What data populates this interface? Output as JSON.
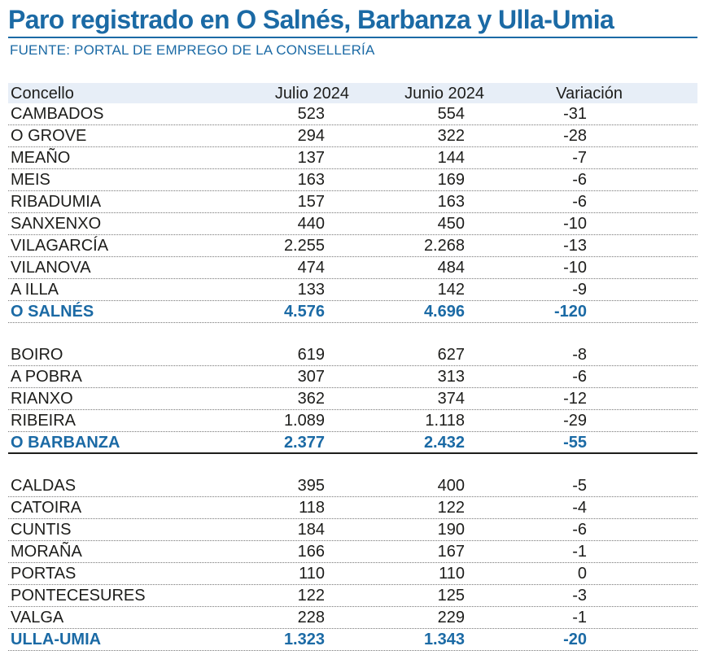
{
  "title": "Paro registrado en O Salnés, Barbanza y Ulla-Umia",
  "source": "FUENTE: PORTAL DE EMPREGO DE LA CONSELLERÍA",
  "header": {
    "concello": "Concello",
    "julio": "Julio 2024",
    "junio": "Junio 2024",
    "variacion": "Variación"
  },
  "groups": [
    {
      "rows": [
        {
          "name": "CAMBADOS",
          "julio": "523",
          "junio": "554",
          "variacion": "-31"
        },
        {
          "name": "O GROVE",
          "julio": "294",
          "junio": "322",
          "variacion": "-28"
        },
        {
          "name": "MEAÑO",
          "julio": "137",
          "junio": "144",
          "variacion": "-7"
        },
        {
          "name": "MEIS",
          "julio": "163",
          "junio": "169",
          "variacion": "-6"
        },
        {
          "name": "RIBADUMIA",
          "julio": "157",
          "junio": "163",
          "variacion": "-6"
        },
        {
          "name": "SANXENXO",
          "julio": "440",
          "junio": "450",
          "variacion": "-10"
        },
        {
          "name": "VILAGARCÍA",
          "julio": "2.255",
          "junio": "2.268",
          "variacion": "-13"
        },
        {
          "name": "VILANOVA",
          "julio": "474",
          "junio": "484",
          "variacion": "-10"
        },
        {
          "name": "A ILLA",
          "julio": "133",
          "junio": "142",
          "variacion": "-9"
        }
      ],
      "total": {
        "name": "O SALNÉS",
        "julio": "4.576",
        "junio": "4.696",
        "variacion": "-120"
      }
    },
    {
      "rows": [
        {
          "name": "BOIRO",
          "julio": "619",
          "junio": "627",
          "variacion": "-8"
        },
        {
          "name": "A POBRA",
          "julio": "307",
          "junio": "313",
          "variacion": "-6"
        },
        {
          "name": "RIANXO",
          "julio": "362",
          "junio": "374",
          "variacion": "-12"
        },
        {
          "name": "RIBEIRA",
          "julio": "1.089",
          "junio": "1.118",
          "variacion": "-29"
        }
      ],
      "total": {
        "name": "O BARBANZA",
        "julio": "2.377",
        "junio": "2.432",
        "variacion": "-55"
      }
    },
    {
      "rows": [
        {
          "name": "CALDAS",
          "julio": "395",
          "junio": "400",
          "variacion": "-5"
        },
        {
          "name": "CATOIRA",
          "julio": "118",
          "junio": "122",
          "variacion": "-4"
        },
        {
          "name": "CUNTIS",
          "julio": "184",
          "junio": "190",
          "variacion": "-6"
        },
        {
          "name": "MORAÑA",
          "julio": "166",
          "junio": "167",
          "variacion": "-1"
        },
        {
          "name": "PORTAS",
          "julio": "110",
          "junio": "110",
          "variacion": "0"
        },
        {
          "name": "PONTECESURES",
          "julio": "122",
          "junio": "125",
          "variacion": "-3"
        },
        {
          "name": "VALGA",
          "julio": "228",
          "junio": "229",
          "variacion": "-1"
        }
      ],
      "total": {
        "name": "ULLA-UMIA",
        "julio": "1.323",
        "junio": "1.343",
        "variacion": "-20"
      }
    }
  ]
}
